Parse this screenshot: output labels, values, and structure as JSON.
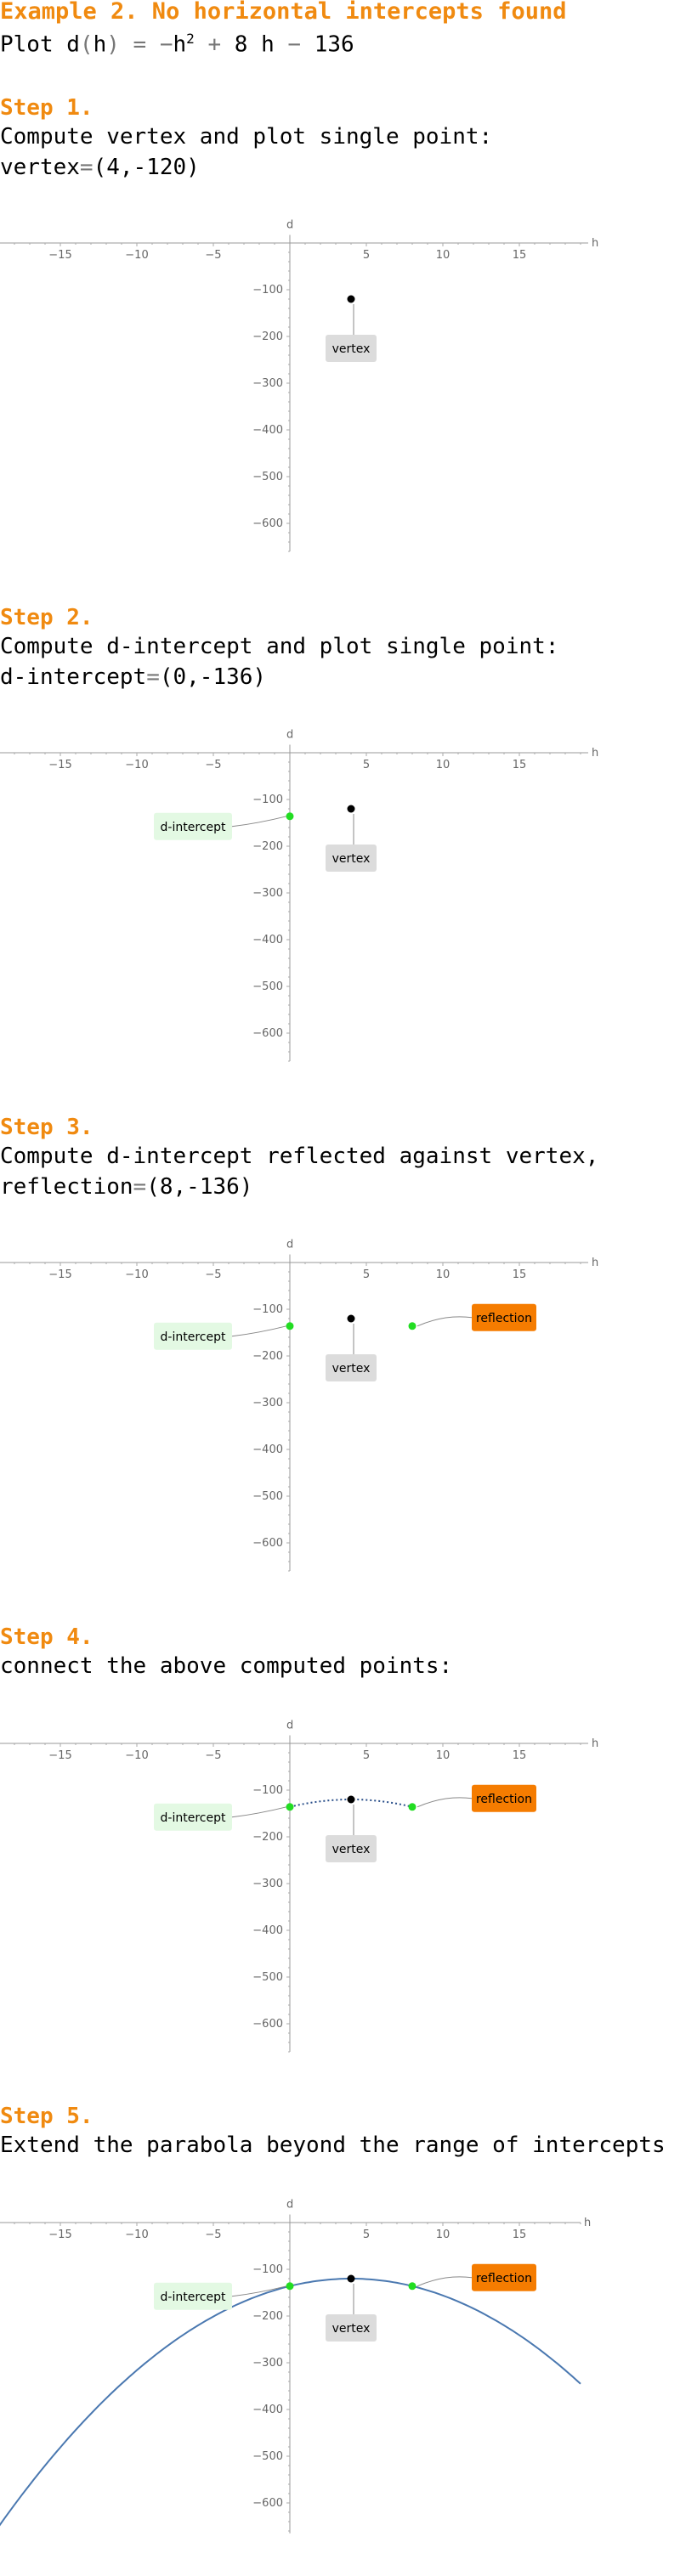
{
  "header": {
    "title": "Example 2. No horizontal intercepts found",
    "plot_prefix": "Plot d",
    "plot_open": "(",
    "plot_var": "h",
    "plot_close": ")",
    "plot_eq": " = −",
    "plot_h": "h",
    "plot_exp": "2",
    "plot_rest1": " + ",
    "plot_rest2": "8 h",
    "plot_rest3": " − ",
    "plot_rest4": "136"
  },
  "steps": [
    {
      "title": "Step 1.",
      "lines": [
        "Compute vertex and plot single point:"
      ],
      "value_name": "vertex",
      "value": "(4,-120)"
    },
    {
      "title": "Step 2.",
      "lines": [
        "Compute d-intercept and plot single point:"
      ],
      "value_name": "d-intercept",
      "value": "(0,-136)"
    },
    {
      "title": "Step 3.",
      "lines": [
        "Compute d-intercept reflected against vertex,"
      ],
      "value_name": "reflection",
      "value": "(8,-136)"
    },
    {
      "title": "Step 4.",
      "lines": [
        "connect the above computed points:"
      ]
    },
    {
      "title": "Step 5.",
      "lines": [
        "Extend the parabola beyond the range of intercepts"
      ]
    }
  ],
  "chart_data": [
    {
      "type": "scatter",
      "step": 1,
      "xlabel": "h",
      "ylabel": "d",
      "xlim": [
        -19,
        19.5
      ],
      "ylim": [
        -660,
        10
      ],
      "x_ticks": [
        "-15",
        "-10",
        "-5",
        "5",
        "10",
        "15"
      ],
      "y_ticks": [
        "-100",
        "-200",
        "-300",
        "-400",
        "-500",
        "-600"
      ],
      "points": [
        {
          "x": 4,
          "y": -120,
          "label": "vertex",
          "color": "#000000"
        }
      ],
      "connector": false,
      "curve": false
    },
    {
      "type": "scatter",
      "step": 2,
      "xlabel": "h",
      "ylabel": "d",
      "xlim": [
        -19,
        19.5
      ],
      "ylim": [
        -660,
        10
      ],
      "x_ticks": [
        "-15",
        "-10",
        "-5",
        "5",
        "10",
        "15"
      ],
      "y_ticks": [
        "-100",
        "-200",
        "-300",
        "-400",
        "-500",
        "-600"
      ],
      "points": [
        {
          "x": 4,
          "y": -120,
          "label": "vertex",
          "color": "#000000"
        },
        {
          "x": 0,
          "y": -136,
          "label": "d-intercept",
          "color": "#22dd22"
        }
      ],
      "connector": false,
      "curve": false
    },
    {
      "type": "scatter",
      "step": 3,
      "xlabel": "h",
      "ylabel": "d",
      "xlim": [
        -19,
        19.5
      ],
      "ylim": [
        -660,
        10
      ],
      "x_ticks": [
        "-15",
        "-10",
        "-5",
        "5",
        "10",
        "15"
      ],
      "y_ticks": [
        "-100",
        "-200",
        "-300",
        "-400",
        "-500",
        "-600"
      ],
      "points": [
        {
          "x": 4,
          "y": -120,
          "label": "vertex",
          "color": "#000000"
        },
        {
          "x": 0,
          "y": -136,
          "label": "d-intercept",
          "color": "#22dd22"
        },
        {
          "x": 8,
          "y": -136,
          "label": "reflection",
          "color": "#22dd22"
        }
      ],
      "connector": false,
      "curve": false
    },
    {
      "type": "line",
      "step": 4,
      "xlabel": "h",
      "ylabel": "d",
      "xlim": [
        -19,
        19.5
      ],
      "ylim": [
        -660,
        10
      ],
      "x_ticks": [
        "-15",
        "-10",
        "-5",
        "5",
        "10",
        "15"
      ],
      "y_ticks": [
        "-100",
        "-200",
        "-300",
        "-400",
        "-500",
        "-600"
      ],
      "points": [
        {
          "x": 4,
          "y": -120,
          "label": "vertex",
          "color": "#000000"
        },
        {
          "x": 0,
          "y": -136,
          "label": "d-intercept",
          "color": "#22dd22"
        },
        {
          "x": 8,
          "y": -136,
          "label": "reflection",
          "color": "#22dd22"
        }
      ],
      "connector": true,
      "curve": false
    },
    {
      "type": "line",
      "step": 5,
      "xlabel": "h",
      "ylabel": "d",
      "xlim": [
        -19.5,
        19
      ],
      "ylim": [
        -665,
        10
      ],
      "x_ticks": [
        "-15",
        "-10",
        "-5",
        "5",
        "10",
        "15"
      ],
      "y_ticks": [
        "-100",
        "-200",
        "-300",
        "-400",
        "-500",
        "-600"
      ],
      "points": [
        {
          "x": 4,
          "y": -120,
          "label": "vertex",
          "color": "#000000"
        },
        {
          "x": 0,
          "y": -136,
          "label": "d-intercept",
          "color": "#22dd22"
        },
        {
          "x": 8,
          "y": -136,
          "label": "reflection",
          "color": "#22dd22"
        }
      ],
      "connector": false,
      "curve": true,
      "curve_x_range": [
        -19,
        19
      ],
      "curve_color": "#4a78b0"
    }
  ],
  "colors": {
    "accent": "#f08a10",
    "vertex_box": "#dcdcdc",
    "intercept_box": "#e3f9e3",
    "reflection_box": "#f57c00",
    "green_point": "#22dd22",
    "curve": "#4a78b0"
  }
}
